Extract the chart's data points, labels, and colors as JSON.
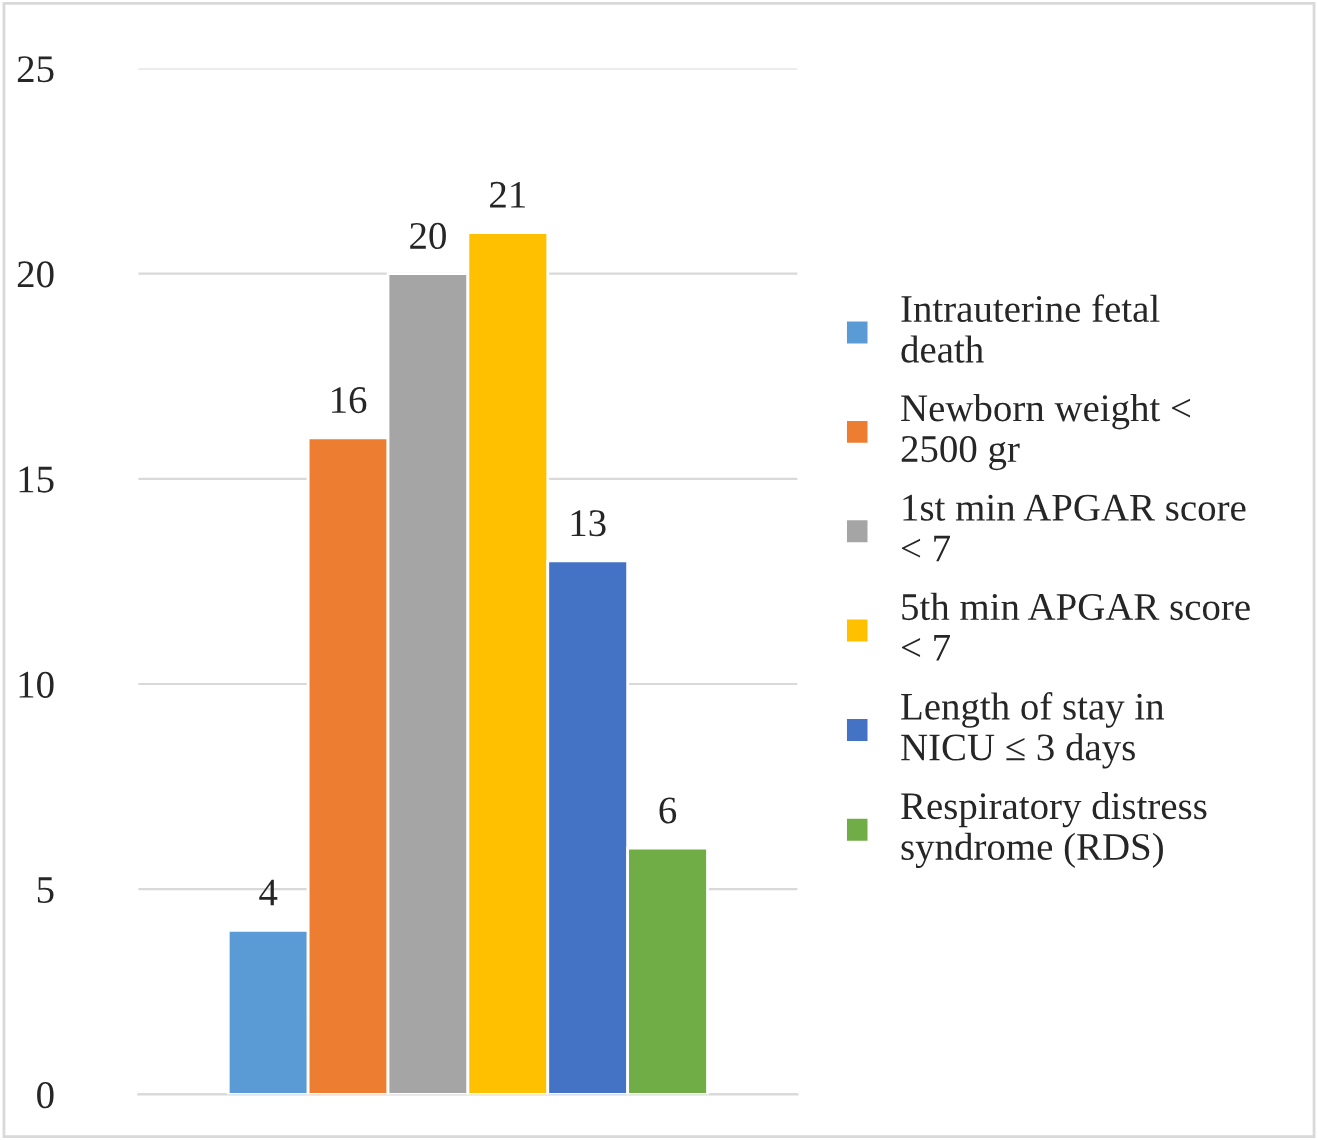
{
  "chart_data": {
    "type": "bar",
    "categories": [
      null
    ],
    "series": [
      {
        "name": "Intrauterine fetal death",
        "color": "#5b9bd5",
        "values": [
          4
        ]
      },
      {
        "name": "Newborn weight < 2500 gr",
        "color": "#ed7d31",
        "values": [
          16
        ]
      },
      {
        "name": "1st min APGAR score < 7",
        "color": "#a5a5a5",
        "values": [
          20
        ]
      },
      {
        "name": "5th min APGAR score < 7",
        "color": "#ffc000",
        "values": [
          21
        ]
      },
      {
        "name": "Length of stay in NICU ≤ 3 days",
        "color": "#4472c4",
        "values": [
          13
        ]
      },
      {
        "name": "Respiratory distress syndrome (RDS)",
        "color": "#70ad47",
        "values": [
          6
        ]
      }
    ],
    "ylim": [
      0,
      25
    ],
    "yticks": [
      0,
      5,
      10,
      15,
      20,
      25
    ],
    "grid": "y",
    "legend": "right",
    "data_labels": true
  }
}
